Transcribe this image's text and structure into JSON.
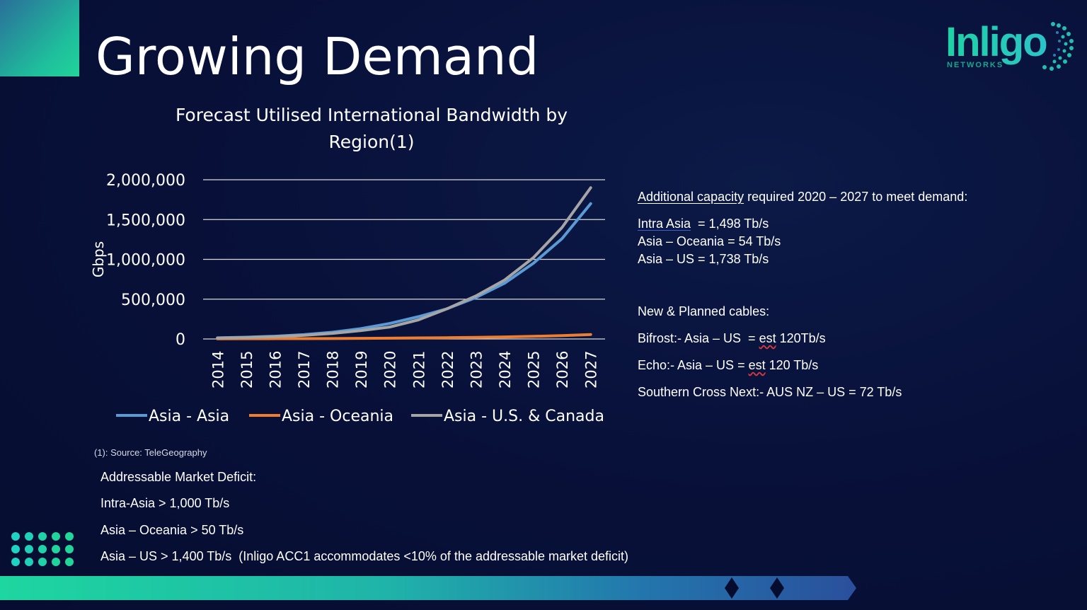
{
  "slide": {
    "title": "Growing Demand"
  },
  "logo": {
    "name": "Inligo",
    "sub": "NETWORKS"
  },
  "chart_data": {
    "type": "line",
    "title": "Forecast Utilised International Bandwidth by Region(1)",
    "title_lines": [
      "Forecast Utilised International Bandwidth by",
      "Region(1)"
    ],
    "xlabel": "",
    "ylabel": "Gbps",
    "categories": [
      "2014",
      "2015",
      "2016",
      "2017",
      "2018",
      "2019",
      "2020",
      "2021",
      "2022",
      "2023",
      "2024",
      "2025",
      "2026",
      "2027"
    ],
    "ylim": [
      0,
      2000000
    ],
    "yticks": [
      0,
      500000,
      1000000,
      1500000,
      2000000
    ],
    "ytick_labels": [
      "0",
      "500,000",
      "1,000,000",
      "1,500,000",
      "2,000,000"
    ],
    "grid": true,
    "legend_position": "bottom",
    "series": [
      {
        "name": "Asia - Asia",
        "color": "#5b9bd5",
        "values": [
          15000,
          22000,
          35000,
          55000,
          85000,
          130000,
          195000,
          280000,
          380000,
          520000,
          700000,
          950000,
          1260000,
          1700000
        ]
      },
      {
        "name": "Asia - Oceania",
        "color": "#ed7d31",
        "values": [
          2000,
          3000,
          4000,
          5000,
          6000,
          8000,
          10000,
          13000,
          16000,
          20000,
          26000,
          33000,
          42000,
          56000
        ]
      },
      {
        "name": "Asia - U.S. & Canada",
        "color": "#a5a5a5",
        "values": [
          12000,
          18000,
          28000,
          45000,
          70000,
          105000,
          150000,
          240000,
          380000,
          540000,
          740000,
          1020000,
          1400000,
          1900000
        ]
      }
    ]
  },
  "source_note": "(1): Source: TeleGeography",
  "right_panel": {
    "capacity_heading_underlined": "Additional capacity",
    "capacity_heading_rest": " required 2020 – 2027 to meet demand:",
    "intra_asia_label": "Intra Asia",
    "intra_asia_value": "  = 1,498 Tb/s",
    "line_oceania": "Asia – Oceania = 54 Tb/s",
    "line_us": "Asia – US = 1,738 Tb/s",
    "cables_heading": "New & Planned cables:",
    "bifrost_prefix": "Bifrost:- Asia – US  = ",
    "bifrost_est": "est",
    "bifrost_value": " 120Tb/s",
    "echo_prefix": "Echo:- Asia – US = ",
    "echo_est": "est",
    "echo_value": " 120 Tb/s",
    "southern_cross": "Southern Cross Next:- AUS NZ – US = 72 Tb/s"
  },
  "bottom_panel": {
    "heading": "Addressable Market Deficit:",
    "line1": "Intra-Asia > 1,000 Tb/s",
    "line2": "Asia – Oceania > 50 Tb/s",
    "line3": "Asia – US > 1,400 Tb/s  (Inligo ACC1 accommodates <10% of the addressable market deficit)"
  },
  "colors": {
    "background": "#08113a",
    "accent_green": "#1ed6a0",
    "accent_blue": "#2a4f9c"
  }
}
